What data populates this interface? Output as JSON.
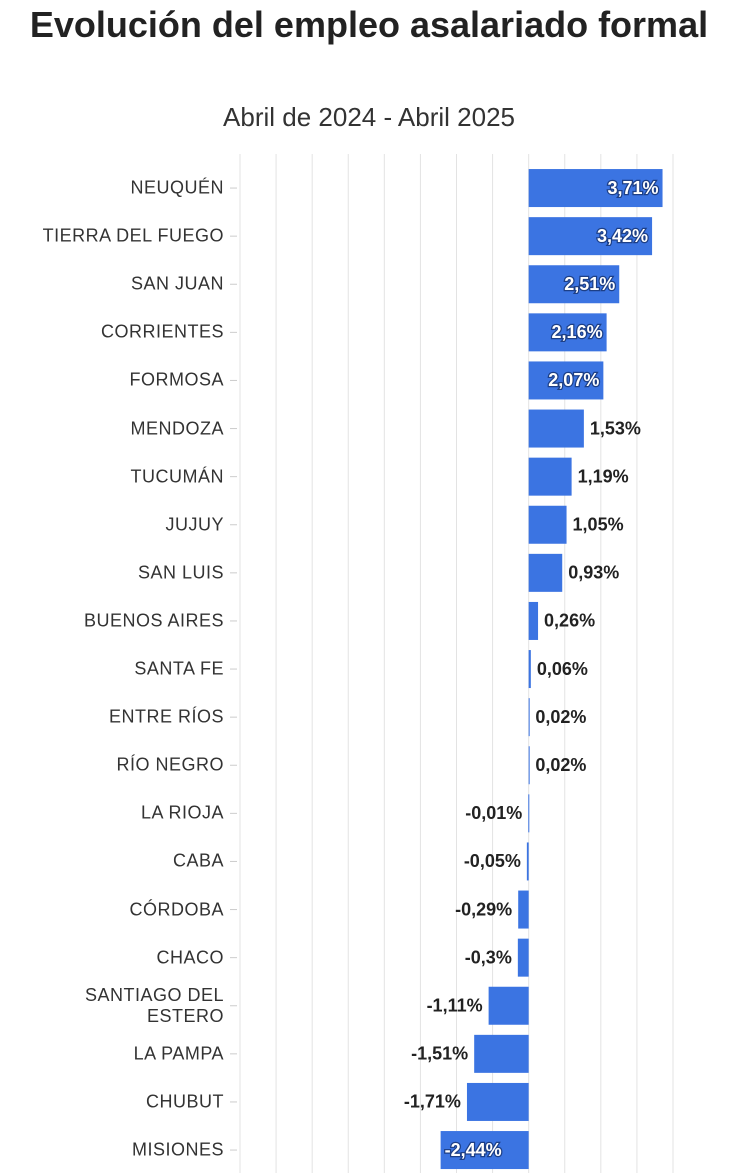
{
  "chart_data": {
    "type": "barh",
    "title": "Evolución del empleo asalariado formal",
    "subtitle": "Abril de 2024 - Abril 2025",
    "categories": [
      "NEUQUÉN",
      "TIERRA DEL FUEGO",
      "SAN JUAN",
      "CORRIENTES",
      "FORMOSA",
      "MENDOZA",
      "TUCUMÁN",
      "JUJUY",
      "SAN LUIS",
      "BUENOS AIRES",
      "SANTA FE",
      "ENTRE RÍOS",
      "RÍO NEGRO",
      "LA RIOJA",
      "CABA",
      "CÓRDOBA",
      "CHACO",
      "SANTIAGO DEL ESTERO",
      "LA PAMPA",
      "CHUBUT",
      "MISIONES"
    ],
    "values": [
      3.71,
      3.42,
      2.51,
      2.16,
      2.07,
      1.53,
      1.19,
      1.05,
      0.93,
      0.26,
      0.06,
      0.02,
      0.02,
      -0.01,
      -0.05,
      -0.29,
      -0.3,
      -1.11,
      -1.51,
      -1.71,
      -2.44
    ],
    "value_labels": [
      "3,71%",
      "3,42%",
      "2,51%",
      "2,16%",
      "2,07%",
      "1,53%",
      "1,19%",
      "1,05%",
      "0,93%",
      "0,26%",
      "0,06%",
      "0,02%",
      "0,02%",
      "-0,01%",
      "-0,05%",
      "-0,29%",
      "-0,3%",
      "-1,11%",
      "-1,51%",
      "-1,71%",
      "-2,44%"
    ],
    "color": "#3b74e2",
    "xlim": [
      -8,
      4
    ],
    "xticks": [
      -8,
      -7,
      -6,
      -5,
      -4,
      -3,
      -2,
      -1,
      0,
      1,
      2,
      3,
      4
    ],
    "grid": true
  }
}
